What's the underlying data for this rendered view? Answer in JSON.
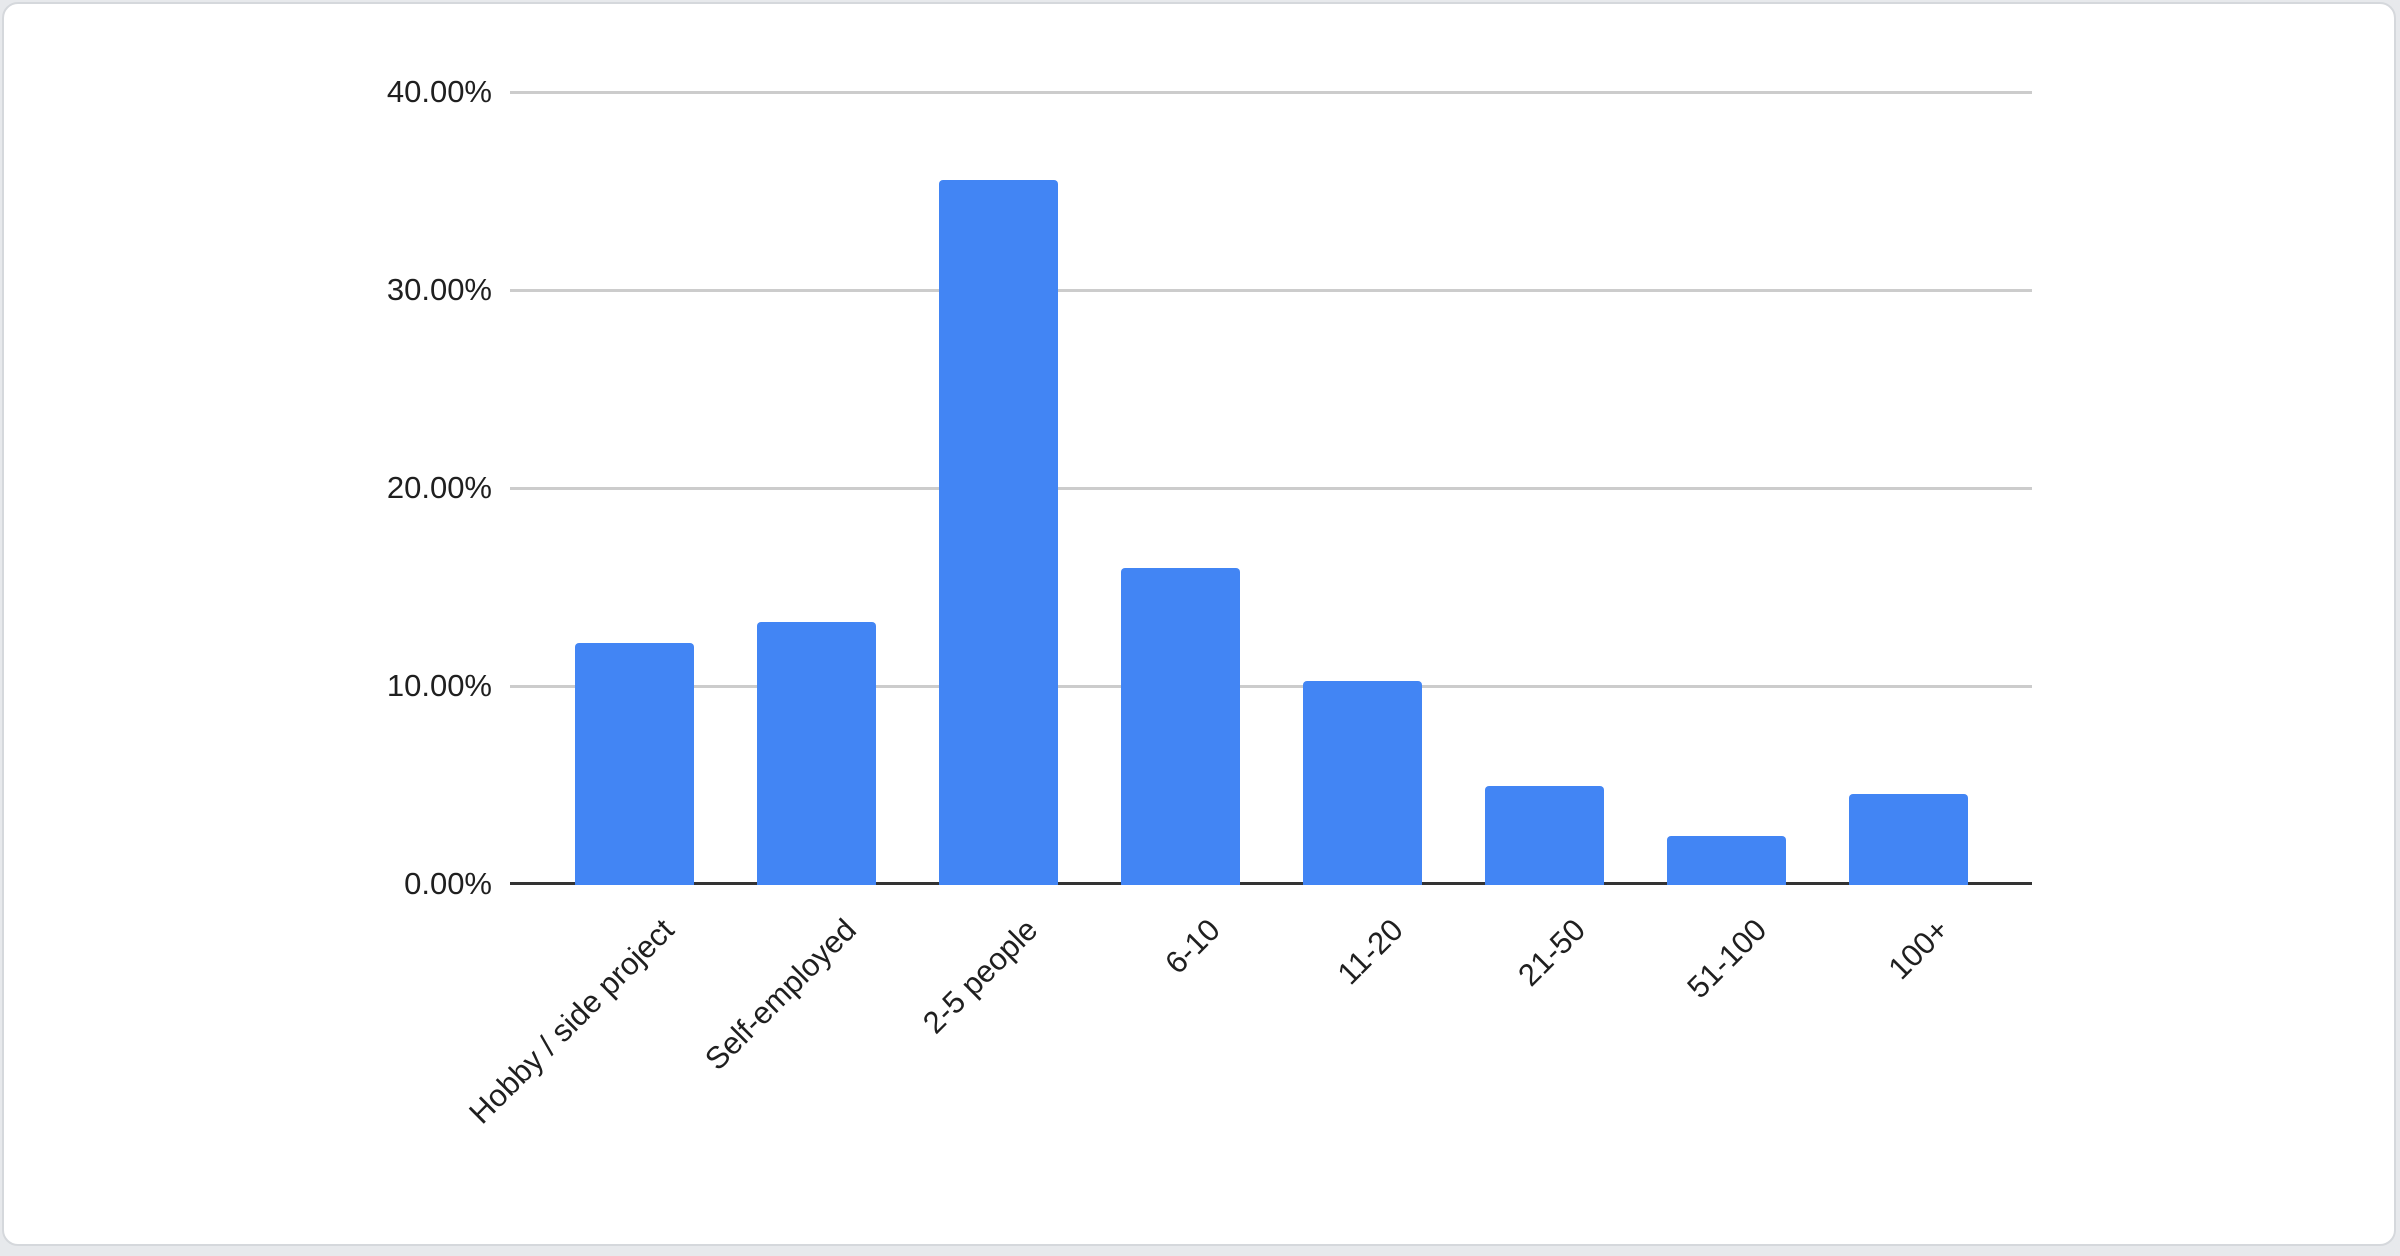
{
  "chart_data": {
    "type": "bar",
    "title": "",
    "xlabel": "",
    "ylabel": "",
    "categories": [
      "Hobby / side project",
      "Self-employed",
      "2-5 people",
      "6-10",
      "11-20",
      "21-50",
      "51-100",
      "100+"
    ],
    "values": [
      12.2,
      13.3,
      35.6,
      16.0,
      10.3,
      5.0,
      2.5,
      4.6
    ],
    "value_unit": "%",
    "ylim": [
      0,
      40
    ],
    "y_tick_labels": [
      "40.00%",
      "30.00%",
      "20.00%",
      "10.00%",
      "0.00%"
    ],
    "grid": "horizontal gridlines on",
    "legend": "none",
    "colors": {
      "bar": "#4285f4",
      "gridline": "#cccccc",
      "axis_line": "#333333",
      "text": "#1f1f1f",
      "card_background": "#ffffff",
      "page_background": "#e7e9ec",
      "card_border": "#d5d8dc"
    }
  }
}
